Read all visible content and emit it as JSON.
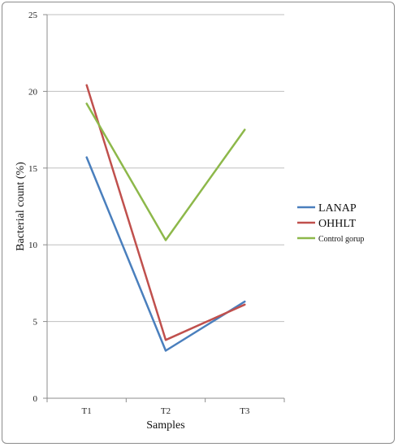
{
  "chart_data": {
    "type": "line",
    "categories": [
      "T1",
      "T2",
      "T3"
    ],
    "series": [
      {
        "name": "LANAP",
        "values": [
          15.7,
          3.1,
          6.3
        ],
        "color": "#4a7fbd"
      },
      {
        "name": "OHHLT",
        "values": [
          20.4,
          3.8,
          6.1
        ],
        "color": "#c0504d"
      },
      {
        "name": "Control gorup",
        "values": [
          19.2,
          10.3,
          17.5
        ],
        "color": "#8db84a"
      }
    ],
    "xlabel": "Samples",
    "ylabel": "Bacterial count (%)",
    "ylim": [
      0,
      25
    ],
    "yticks": [
      0,
      5,
      10,
      15,
      20,
      25
    ],
    "grid": true,
    "legend_position": "right"
  }
}
